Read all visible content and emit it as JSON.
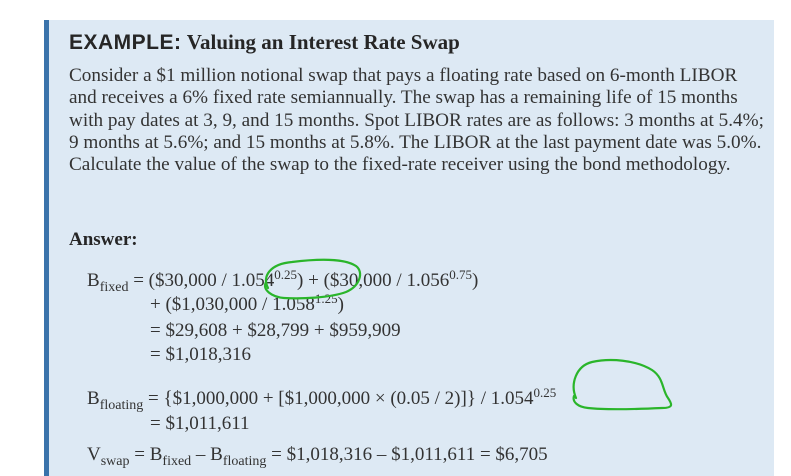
{
  "example": {
    "keyword": "EXAMPLE:",
    "title": "Valuing an Interest Rate Swap",
    "problem": "Consider a $1 million notional swap that pays a floating rate based on 6-month LIBOR and receives a 6% fixed rate semiannually. The swap has a remaining life of 15 months with pay dates at 3, 9, and 15 months. Spot LIBOR rates are as follows: 3 months at 5.4%; 9 months at 5.6%; and 15 months at 5.8%. The LIBOR at the last payment date was 5.0%. Calculate the value of the swap to the fixed-rate receiver using the bond methodology."
  },
  "answer": {
    "label": "Answer:",
    "b_fixed": {
      "symbol": "B",
      "subscript": "fixed",
      "line1_a": " = ($30,000 / ",
      "line1_base1": "1.054",
      "line1_exp1": "0.25",
      "line1_b": ") + ($30,000 / ",
      "line1_base2": "1.056",
      "line1_exp2": "0.75",
      "line1_c": ")",
      "line2_a": "+ ($1,030,000 / ",
      "line2_base": "1.058",
      "line2_exp": "1.25",
      "line2_b": ")",
      "line3": "= $29,608 + $28,799 + $959,909",
      "line4": "= $1,018,316"
    },
    "b_floating": {
      "symbol": "B",
      "subscript": "floating",
      "line1_a": " = {$1,000,000 + [$1,000,000 × (0.05 / 2)]} / ",
      "line1_base": "1.054",
      "line1_exp": "0.25",
      "line2": "= $1,011,611"
    },
    "v_swap": {
      "symbol": "V",
      "subscript": "swap",
      "eq_a": " = B",
      "sub_fixed": "fixed",
      "minus": " – B",
      "sub_floating": "floating",
      "eq_b": " = $1,018,316 – $1,011,611 = $6,705"
    }
  },
  "annotation": {
    "ink_color": "#2ab52a"
  }
}
